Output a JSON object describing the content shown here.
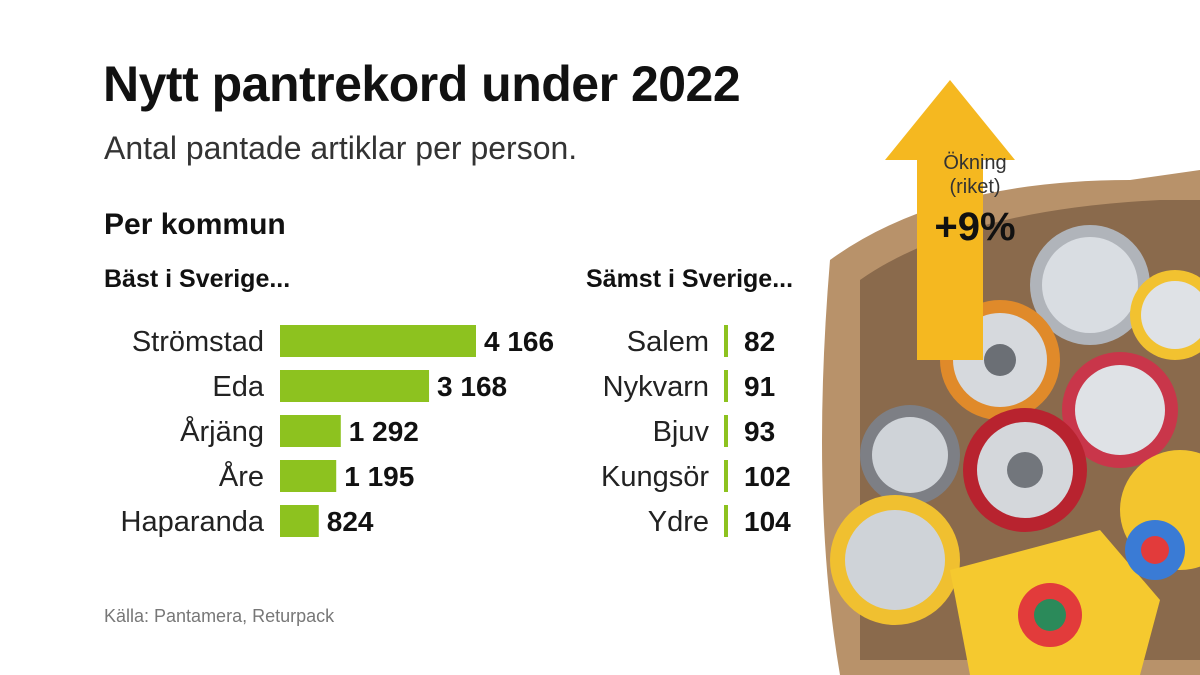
{
  "title": "Nytt pantrekord under 2022",
  "subtitle": "Antal pantade artiklar per person.",
  "section_label": "Per kommun",
  "best_label": "Bäst i Sverige...",
  "worst_label": "Sämst i Sverige...",
  "increase": {
    "line1": "Ökning",
    "line2": "(riket)",
    "value": "+9%"
  },
  "source": "Källa: Pantamera, Returpack",
  "colors": {
    "bar": "#8dc21f",
    "arrow": "#f5b820"
  },
  "chart_data": [
    {
      "type": "bar",
      "orientation": "horizontal",
      "title": "Bäst i Sverige...",
      "categories": [
        "Strömstad",
        "Eda",
        "Årjäng",
        "Åre",
        "Haparanda"
      ],
      "values": [
        4166,
        3168,
        1292,
        1195,
        824
      ],
      "value_labels": [
        "4 166",
        "3 168",
        "1 292",
        "1 195",
        "824"
      ]
    },
    {
      "type": "bar",
      "orientation": "horizontal",
      "title": "Sämst i Sverige...",
      "categories": [
        "Salem",
        "Nykvarn",
        "Bjuv",
        "Kungsör",
        "Ydre"
      ],
      "values": [
        82,
        91,
        93,
        102,
        104
      ],
      "value_labels": [
        "82",
        "91",
        "93",
        "102",
        "104"
      ]
    }
  ]
}
